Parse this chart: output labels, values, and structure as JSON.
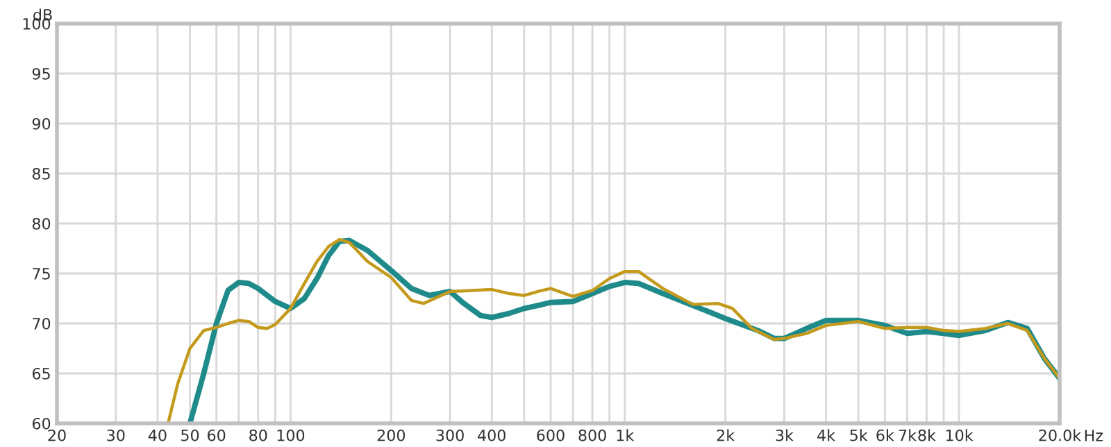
{
  "chart_data": {
    "type": "line",
    "xlabel": "Hz",
    "ylabel": "dB",
    "log": "x",
    "grid": true,
    "legend": false,
    "marker": "none",
    "line_style": "solid",
    "xlim": [
      20,
      20000
    ],
    "ylim": [
      60,
      100
    ],
    "xticks": [
      20,
      30,
      40,
      50,
      60,
      {
        "value": 70,
        "label": null
      },
      80,
      {
        "value": 90,
        "label": null
      },
      100,
      200,
      300,
      400,
      {
        "value": 500,
        "label": null
      },
      600,
      {
        "value": 700,
        "label": null
      },
      800,
      {
        "value": 900,
        "label": null
      },
      {
        "value": 1000,
        "label": "1k"
      },
      {
        "value": 2000,
        "label": "2k"
      },
      {
        "value": 3000,
        "label": "3k"
      },
      {
        "value": 4000,
        "label": "4k"
      },
      {
        "value": 5000,
        "label": "5k"
      },
      {
        "value": 6000,
        "label": "6k"
      },
      {
        "value": 7000,
        "label": "7k"
      },
      {
        "value": 8000,
        "label": "8k"
      },
      {
        "value": 9000,
        "label": null
      },
      {
        "value": 10000,
        "label": "10k"
      },
      {
        "value": 20000,
        "label": "20.0k"
      }
    ],
    "yticks": [
      60,
      65,
      70,
      75,
      80,
      85,
      90,
      95,
      100
    ],
    "series": [
      {
        "color": "#1f8a8a",
        "x": [
          50,
          55,
          60,
          65,
          70,
          75,
          80,
          90,
          100,
          110,
          120,
          130,
          140,
          150,
          170,
          200,
          230,
          260,
          300,
          330,
          370,
          400,
          450,
          500,
          550,
          600,
          700,
          800,
          900,
          1000,
          1100,
          1300,
          1600,
          2000,
          2500,
          2800,
          3000,
          3500,
          4000,
          5000,
          6000,
          7000,
          8000,
          9000,
          10000,
          12000,
          14000,
          16000,
          18000,
          20000
        ],
        "values": [
          60,
          65,
          70,
          73.3,
          74.1,
          74.0,
          73.5,
          72.2,
          71.5,
          72.5,
          74.5,
          76.8,
          78.2,
          78.3,
          77.3,
          75.3,
          73.5,
          72.8,
          73.2,
          72,
          70.8,
          70.6,
          71,
          71.5,
          71.8,
          72.1,
          72.2,
          73,
          73.7,
          74.1,
          74,
          73,
          71.8,
          70.5,
          69.3,
          68.5,
          68.5,
          69.5,
          70.3,
          70.3,
          69.8,
          69,
          69.2,
          69,
          68.8,
          69.3,
          70.1,
          69.5,
          66.5,
          64.5
        ]
      },
      {
        "color": "#c49a1c",
        "x": [
          43,
          46,
          50,
          55,
          60,
          65,
          70,
          75,
          80,
          85,
          90,
          100,
          110,
          120,
          130,
          140,
          150,
          170,
          200,
          230,
          250,
          300,
          350,
          400,
          450,
          500,
          550,
          600,
          700,
          800,
          900,
          1000,
          1100,
          1300,
          1600,
          1900,
          2100,
          2400,
          2800,
          3000,
          3500,
          4000,
          5000,
          6000,
          7000,
          8000,
          9000,
          10000,
          12000,
          14000,
          16000,
          18000,
          20000
        ],
        "values": [
          60,
          64,
          67.5,
          69.3,
          69.6,
          70,
          70.3,
          70.2,
          69.6,
          69.5,
          69.9,
          71.5,
          74,
          76.2,
          77.7,
          78.4,
          78.1,
          76.2,
          74.6,
          72.3,
          72,
          73.2,
          73.3,
          73.4,
          73,
          72.8,
          73.2,
          73.5,
          72.7,
          73.3,
          74.5,
          75.2,
          75.2,
          73.5,
          71.9,
          72,
          71.5,
          69.5,
          68.4,
          68.5,
          69,
          69.8,
          70.2,
          69.5,
          69.6,
          69.6,
          69.3,
          69.2,
          69.5,
          70,
          69.3,
          66.5,
          64.5
        ]
      }
    ]
  }
}
